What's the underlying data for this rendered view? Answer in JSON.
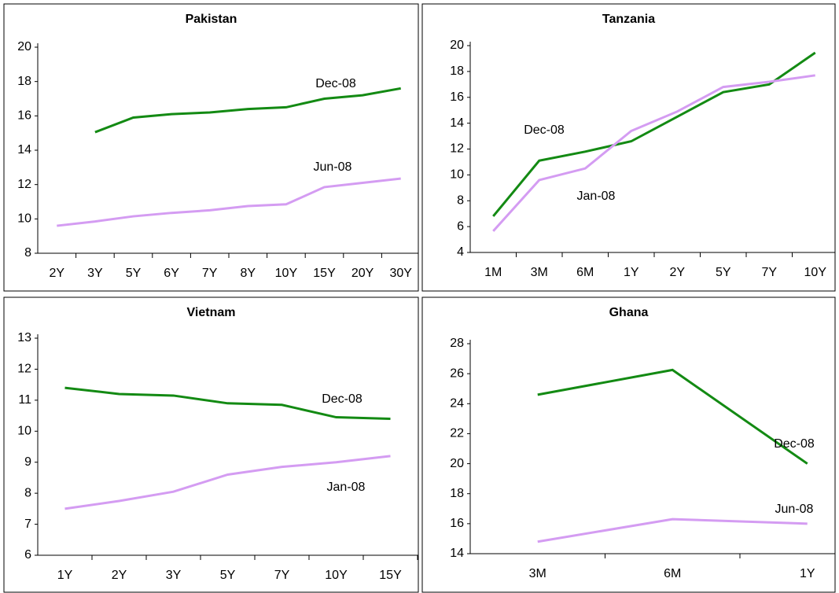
{
  "chart_data": [
    {
      "type": "line",
      "title": "Pakistan",
      "categories": [
        "2Y",
        "3Y",
        "5Y",
        "6Y",
        "7Y",
        "8Y",
        "10Y",
        "15Y",
        "20Y",
        "30Y"
      ],
      "series": [
        {
          "name": "Dec-08",
          "color": "#138a13",
          "values": [
            null,
            15.05,
            15.9,
            16.1,
            16.2,
            16.4,
            16.5,
            17.0,
            17.2,
            17.6
          ]
        },
        {
          "name": "Jun-08",
          "color": "#d49cf2",
          "values": [
            9.6,
            9.85,
            10.15,
            10.35,
            10.5,
            10.75,
            10.85,
            11.85,
            12.1,
            12.35
          ]
        }
      ],
      "ylim": [
        8,
        20
      ],
      "yticks": [
        8,
        10,
        12,
        14,
        16,
        18,
        20
      ]
    },
    {
      "type": "line",
      "title": "Tanzania",
      "categories": [
        "1M",
        "3M",
        "6M",
        "1Y",
        "2Y",
        "5Y",
        "7Y",
        "10Y"
      ],
      "series": [
        {
          "name": "Dec-08",
          "color": "#138a13",
          "values": [
            6.8,
            11.1,
            11.8,
            12.6,
            14.5,
            16.4,
            17.0,
            19.45
          ]
        },
        {
          "name": "Jan-08",
          "color": "#d49cf2",
          "values": [
            5.65,
            9.6,
            10.5,
            13.4,
            14.9,
            16.8,
            17.2,
            17.7
          ]
        }
      ],
      "ylim": [
        4,
        20
      ],
      "yticks": [
        4,
        6,
        8,
        10,
        12,
        14,
        16,
        18,
        20
      ]
    },
    {
      "type": "line",
      "title": "Vietnam",
      "categories": [
        "1Y",
        "2Y",
        "3Y",
        "5Y",
        "7Y",
        "10Y",
        "15Y"
      ],
      "series": [
        {
          "name": "Dec-08",
          "color": "#138a13",
          "values": [
            11.4,
            11.2,
            11.15,
            10.9,
            10.85,
            10.45,
            10.4
          ]
        },
        {
          "name": "Jan-08",
          "color": "#d49cf2",
          "values": [
            7.5,
            7.75,
            8.05,
            8.6,
            8.85,
            9.0,
            9.2
          ]
        }
      ],
      "ylim": [
        6,
        13
      ],
      "yticks": [
        6,
        7,
        8,
        9,
        10,
        11,
        12,
        13
      ]
    },
    {
      "type": "line",
      "title": "Ghana",
      "categories": [
        "3M",
        "6M",
        "1Y"
      ],
      "series": [
        {
          "name": "Dec-08",
          "color": "#138a13",
          "values": [
            24.6,
            26.25,
            20.0
          ]
        },
        {
          "name": "Jun-08",
          "color": "#d49cf2",
          "values": [
            14.8,
            16.3,
            16.0
          ]
        }
      ],
      "ylim": [
        14,
        28
      ],
      "yticks": [
        14,
        16,
        18,
        20,
        22,
        24,
        26,
        28
      ]
    }
  ]
}
